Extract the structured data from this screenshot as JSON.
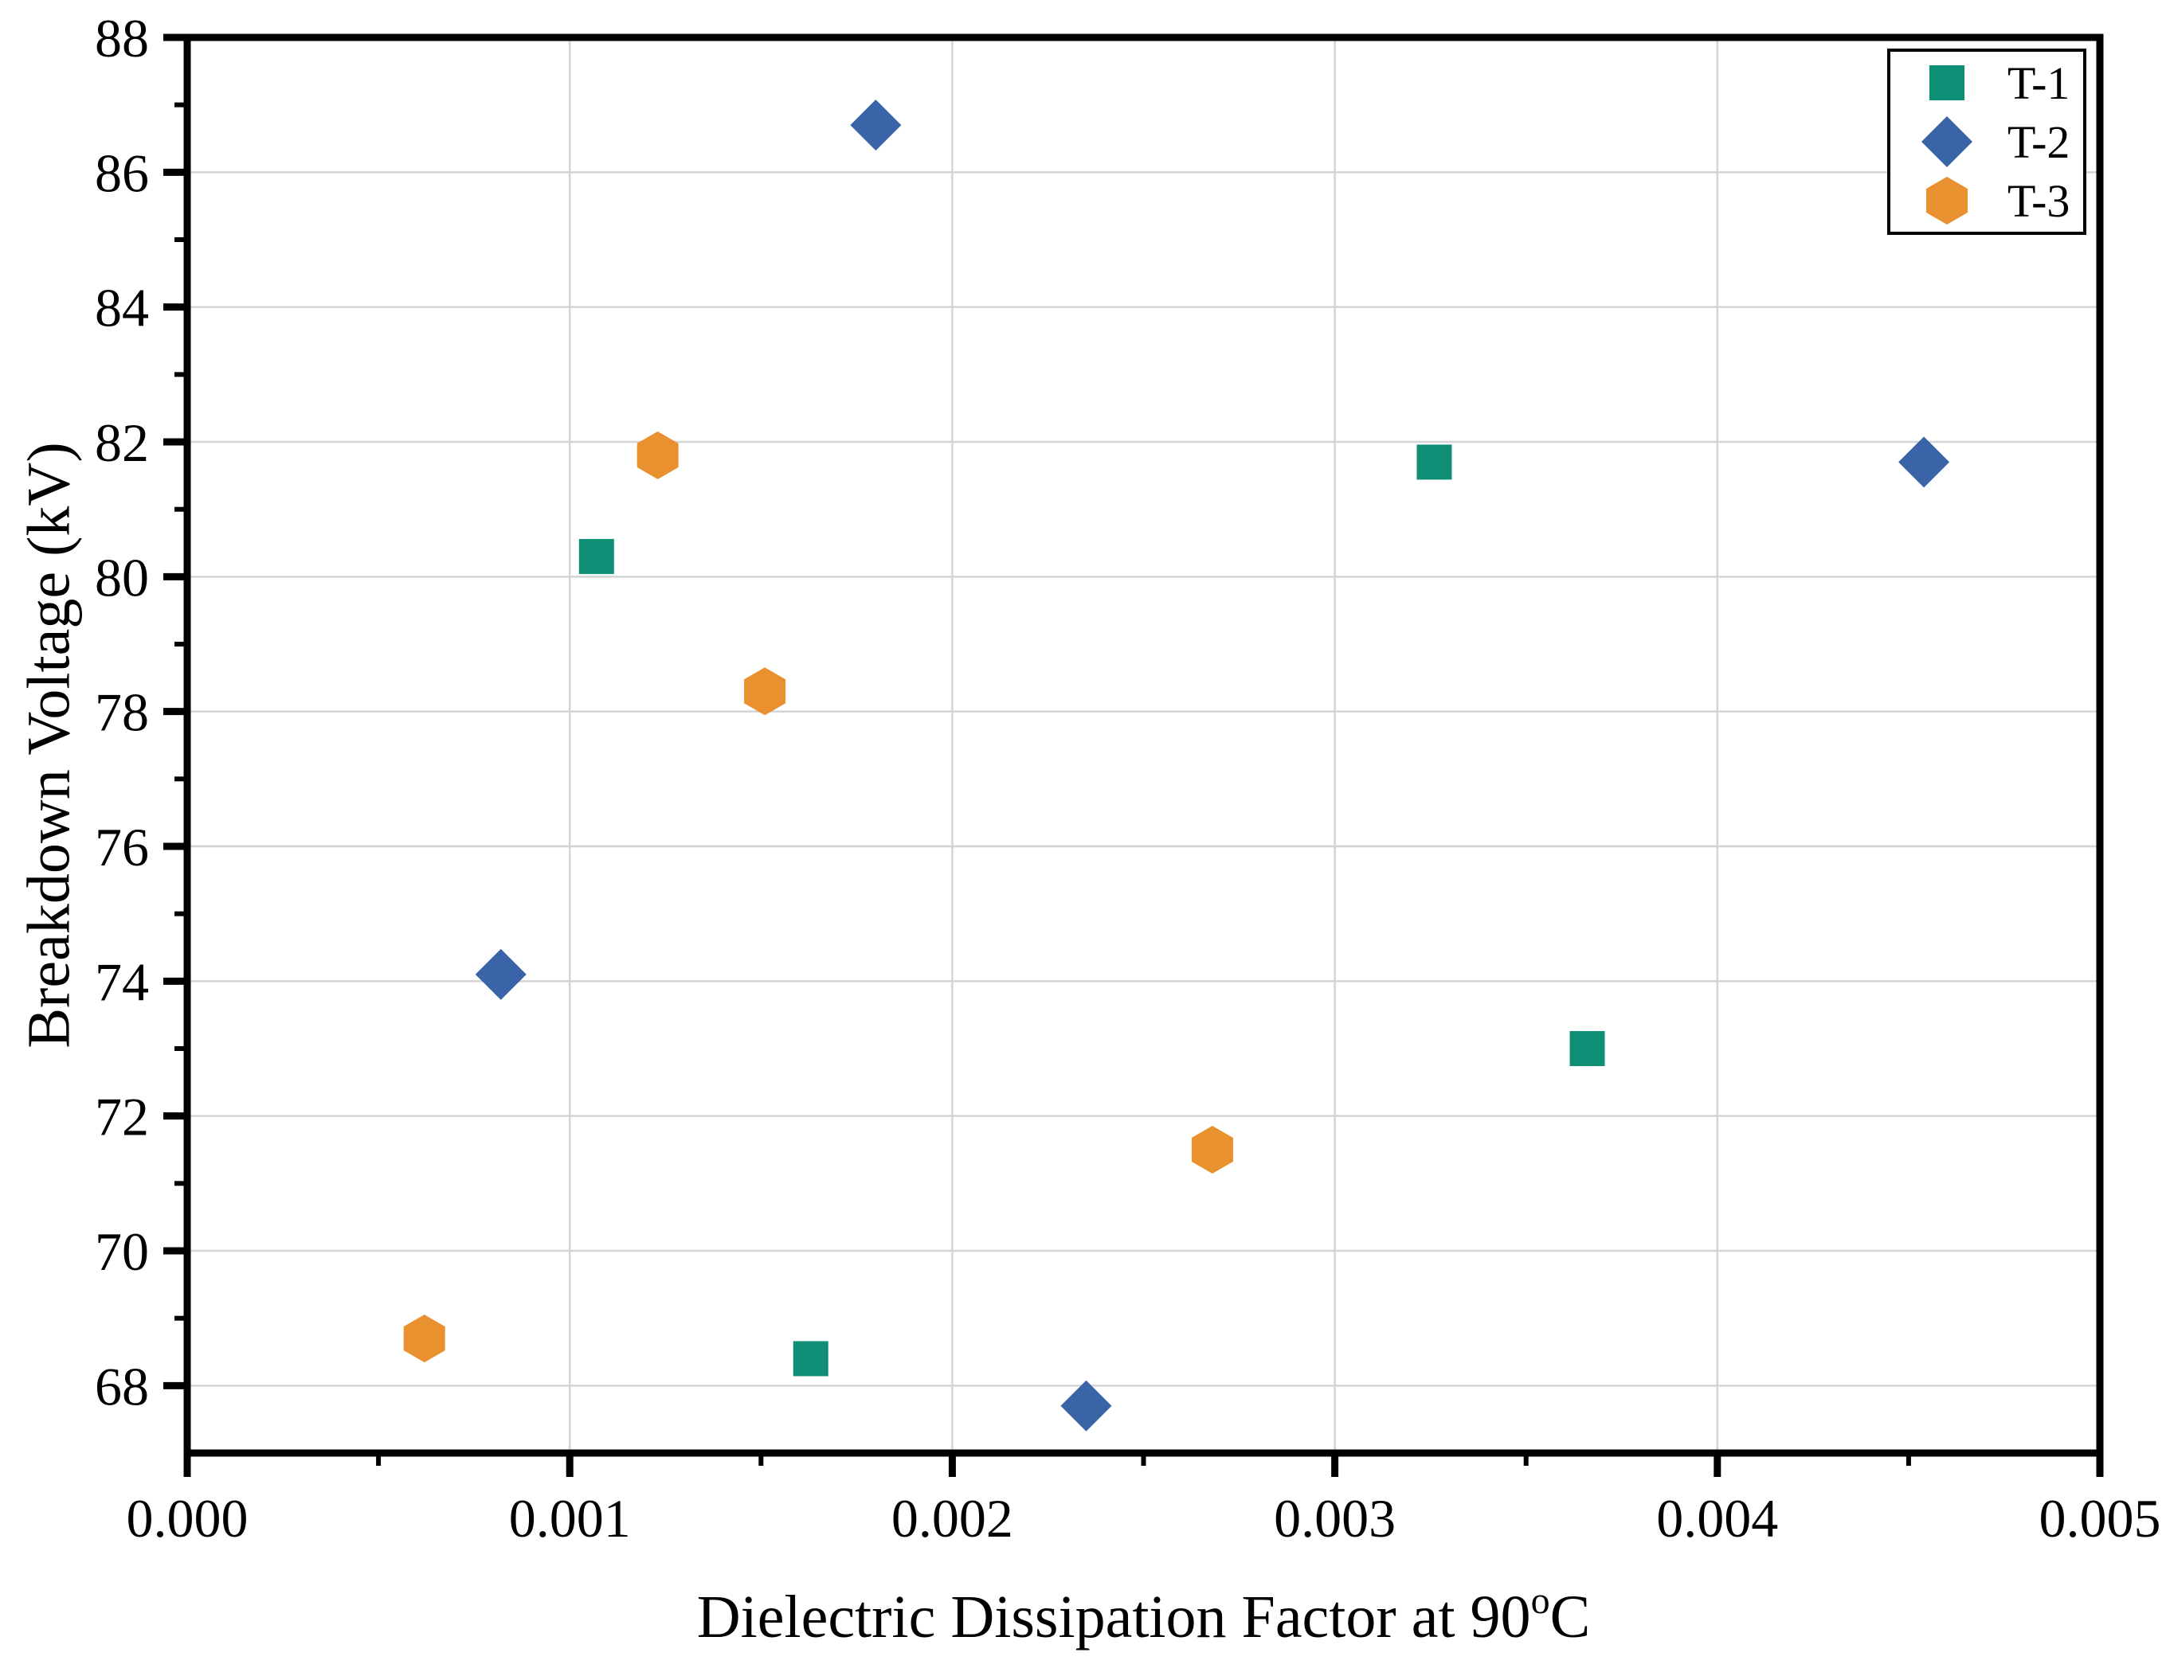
{
  "chart_data": {
    "type": "scatter",
    "title": "",
    "xlabel_prefix": "Dielectric Dissipation Factor at 90",
    "xlabel_sup": "o",
    "xlabel_suffix": "C",
    "ylabel": "Breakdown Voltage (kV)",
    "xlim": [
      0.0,
      0.005
    ],
    "ylim": [
      67.0,
      88.0
    ],
    "grid": {
      "show": true,
      "color": "#d4d4d4"
    },
    "frame_color": "#000000",
    "legend_position": "top-right",
    "x_major_ticks": [
      {
        "v": 0.0,
        "label": "0.000"
      },
      {
        "v": 0.001,
        "label": "0.001"
      },
      {
        "v": 0.002,
        "label": "0.002"
      },
      {
        "v": 0.003,
        "label": "0.003"
      },
      {
        "v": 0.004,
        "label": "0.004"
      },
      {
        "v": 0.005,
        "label": "0.005"
      }
    ],
    "x_minor_ticks": [
      0.0005,
      0.0015,
      0.0025,
      0.0035,
      0.0045
    ],
    "y_major_ticks": [
      {
        "v": 68,
        "label": "68"
      },
      {
        "v": 70,
        "label": "70"
      },
      {
        "v": 72,
        "label": "72"
      },
      {
        "v": 74,
        "label": "74"
      },
      {
        "v": 76,
        "label": "76"
      },
      {
        "v": 78,
        "label": "78"
      },
      {
        "v": 80,
        "label": "80"
      },
      {
        "v": 82,
        "label": "82"
      },
      {
        "v": 84,
        "label": "84"
      },
      {
        "v": 86,
        "label": "86"
      },
      {
        "v": 88,
        "label": "88"
      }
    ],
    "y_minor_ticks": [
      69,
      71,
      73,
      75,
      77,
      79,
      81,
      83,
      85,
      87
    ],
    "series": [
      {
        "name": "T-1",
        "marker": "square",
        "color": "#0f9076",
        "points": [
          [
            0.00107,
            80.3
          ],
          [
            0.00163,
            68.4
          ],
          [
            0.00326,
            81.7
          ],
          [
            0.00366,
            73.0
          ]
        ]
      },
      {
        "name": "T-2",
        "marker": "diamond",
        "color": "#3a64a8",
        "points": [
          [
            0.00082,
            74.1
          ],
          [
            0.0018,
            86.7
          ],
          [
            0.00235,
            67.7
          ],
          [
            0.00454,
            81.7
          ]
        ]
      },
      {
        "name": "T-3",
        "marker": "hexagon",
        "color": "#e9912e",
        "points": [
          [
            0.00062,
            68.7
          ],
          [
            0.00123,
            81.8
          ],
          [
            0.00151,
            78.3
          ],
          [
            0.00268,
            71.5
          ]
        ]
      }
    ]
  }
}
